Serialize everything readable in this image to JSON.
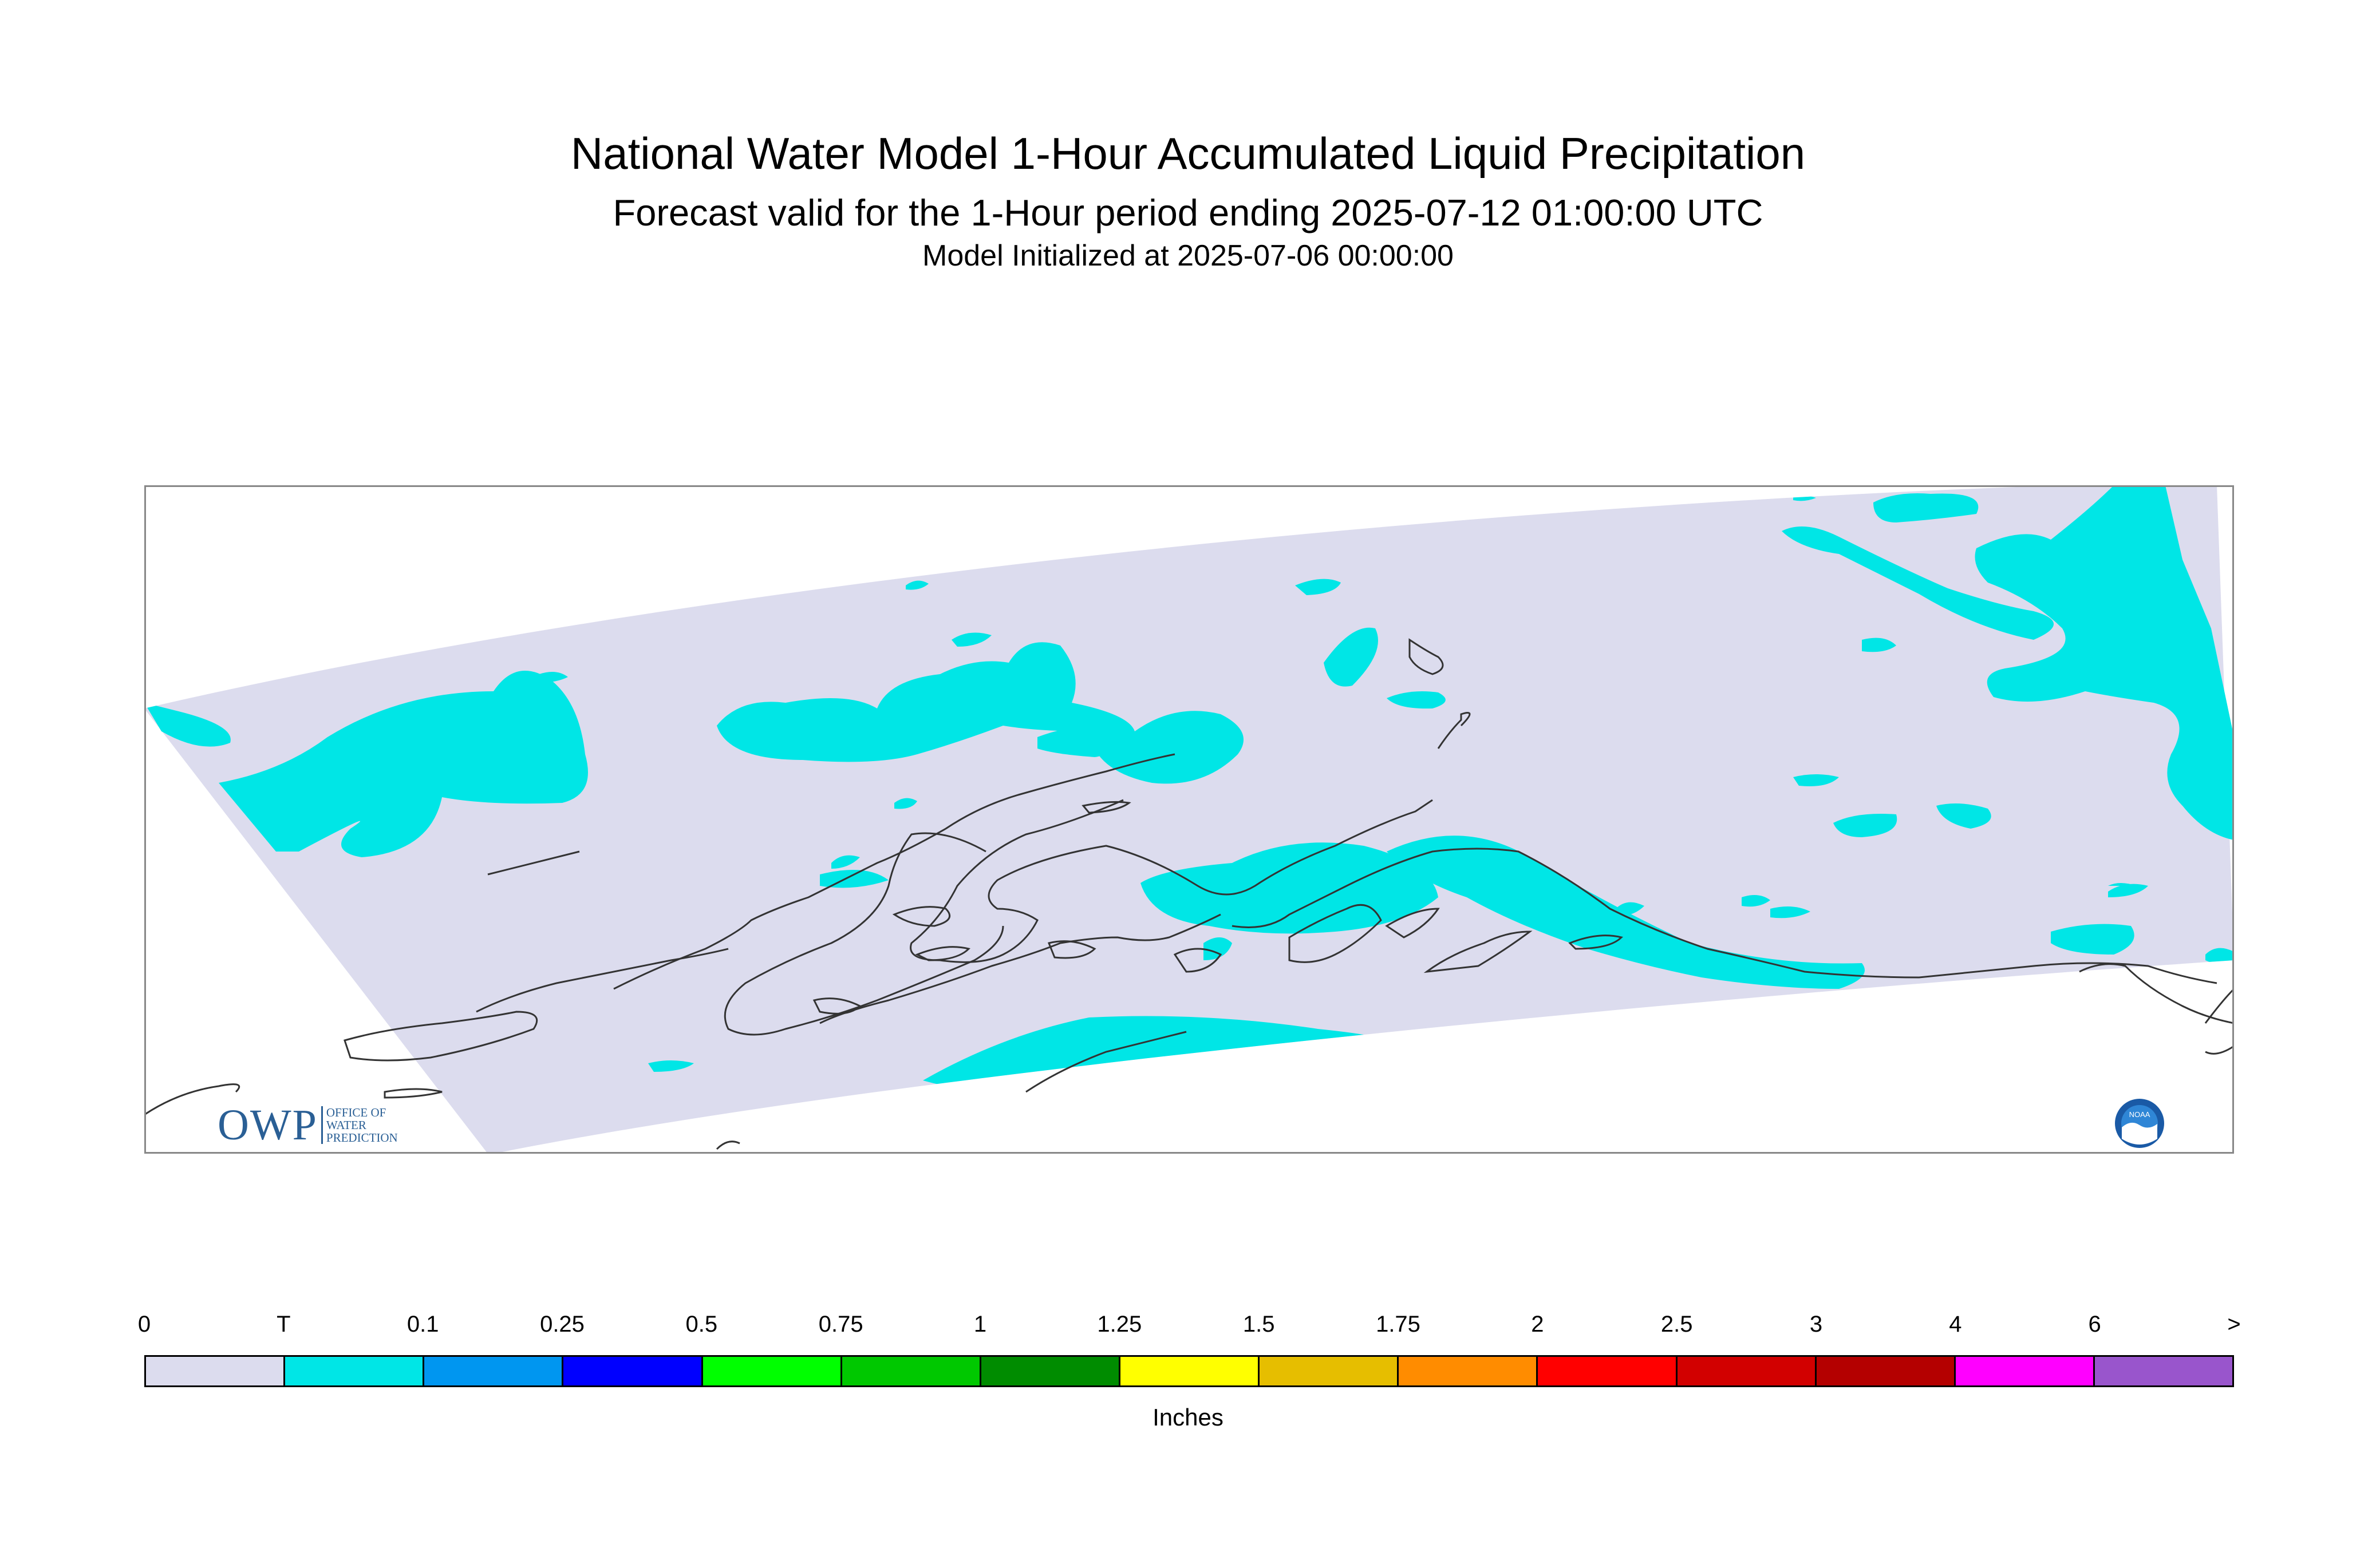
{
  "title": {
    "main": "National Water Model 1-Hour Accumulated Liquid Precipitation",
    "forecast": "Forecast valid for the 1-Hour period ending 2025-07-12 01:00:00 UTC",
    "initialized": "Model Initialized at 2025-07-06 00:00:00"
  },
  "logos": {
    "owp_mark": "OWP",
    "owp_line1": "Office of",
    "owp_line2": "Water",
    "owp_line3": "Prediction",
    "noaa_text": "NOAA"
  },
  "legend": {
    "units": "Inches",
    "ticks": [
      "0",
      "T",
      "0.1",
      "0.25",
      "0.5",
      "0.75",
      "1",
      "1.25",
      "1.5",
      "1.75",
      "2",
      "2.5",
      "3",
      "4",
      "6",
      ">"
    ],
    "colors": [
      "#dcdcee",
      "#00e6e6",
      "#0096f0",
      "#0000ff",
      "#00ff00",
      "#00c800",
      "#008c00",
      "#ffff00",
      "#e6be00",
      "#ff8c00",
      "#ff0000",
      "#d20000",
      "#b40000",
      "#ff00ff",
      "#9955cc"
    ]
  },
  "map": {
    "domain_fill": "#dcdcee",
    "precip_fill": "#00e6e6",
    "coast_color": "#333333"
  }
}
